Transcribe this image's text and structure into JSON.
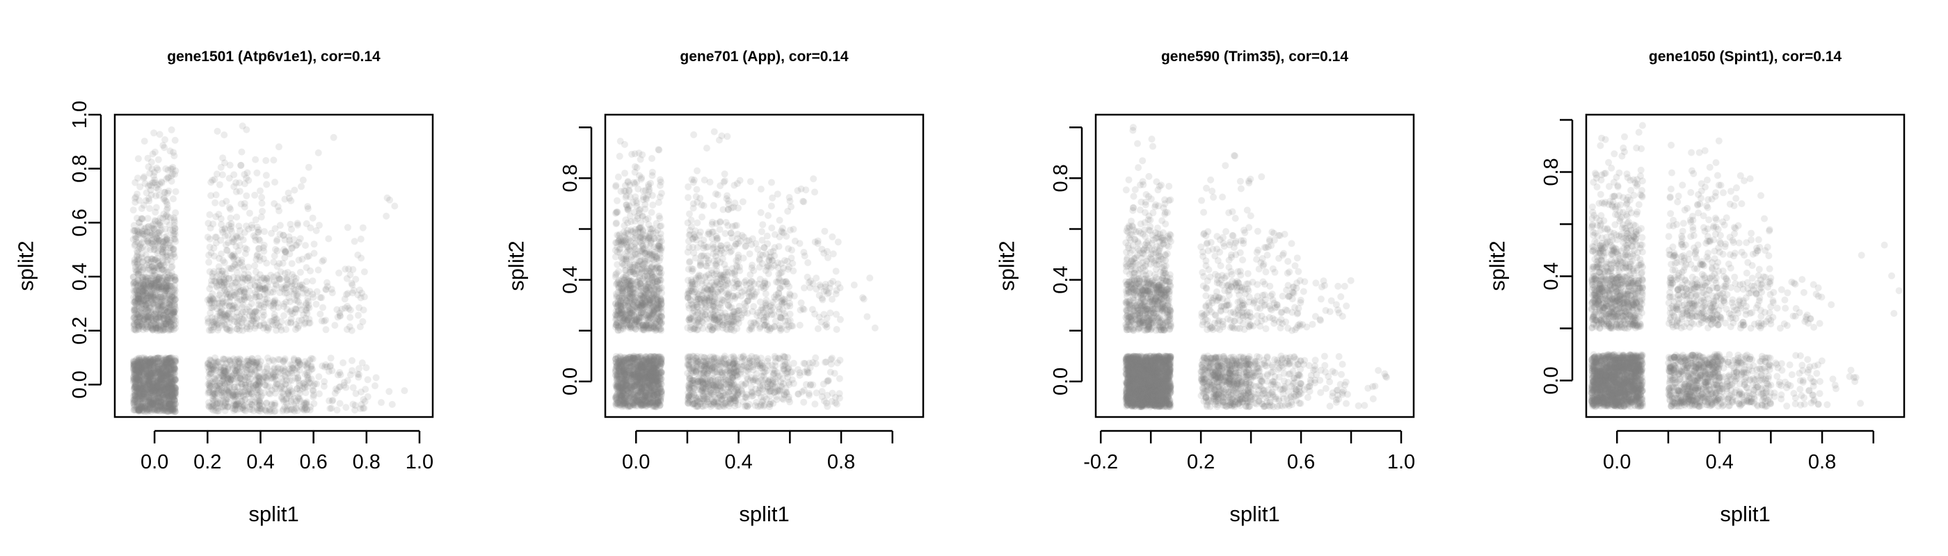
{
  "figure": {
    "background": "#ffffff",
    "point_color": "#808080",
    "point_opacity": 0.15
  },
  "chart_data": [
    {
      "type": "scatter",
      "title": "gene1501 (Atp6v1e1), cor=0.14",
      "xlabel": "split1",
      "ylabel": "split2",
      "xlim": [
        -0.15,
        1.05
      ],
      "ylim": [
        -0.12,
        1.0
      ],
      "xticks": [
        0.0,
        0.2,
        0.4,
        0.6,
        0.8,
        1.0
      ],
      "xtick_labels": [
        "0.0",
        "0.2",
        "0.4",
        "0.6",
        "0.8",
        "1.0"
      ],
      "yticks": [
        0.0,
        0.2,
        0.4,
        0.6,
        0.8,
        1.0
      ],
      "ytick_labels": [
        "0.0",
        "0.2",
        "0.4",
        "0.6",
        "0.8",
        "1.0"
      ],
      "series": [
        {
          "clusters": [
            {
              "x": [
                -0.08,
                0.08
              ],
              "y": [
                -0.1,
                0.1
              ],
              "n": 1200
            },
            {
              "x": [
                0.2,
                0.4
              ],
              "y": [
                -0.1,
                0.1
              ],
              "n": 420
            },
            {
              "x": [
                0.4,
                0.6
              ],
              "y": [
                -0.1,
                0.1
              ],
              "n": 220
            },
            {
              "x": [
                0.6,
                0.8
              ],
              "y": [
                -0.1,
                0.1
              ],
              "n": 60
            },
            {
              "x": [
                0.8,
                0.95
              ],
              "y": [
                -0.1,
                0.05
              ],
              "n": 8
            },
            {
              "x": [
                -0.08,
                0.08
              ],
              "y": [
                0.2,
                0.4
              ],
              "n": 600
            },
            {
              "x": [
                0.2,
                0.4
              ],
              "y": [
                0.2,
                0.4
              ],
              "n": 250
            },
            {
              "x": [
                0.4,
                0.6
              ],
              "y": [
                0.2,
                0.4
              ],
              "n": 160
            },
            {
              "x": [
                0.6,
                0.8
              ],
              "y": [
                0.2,
                0.4
              ],
              "n": 50
            },
            {
              "x": [
                -0.08,
                0.08
              ],
              "y": [
                0.4,
                0.6
              ],
              "n": 230
            },
            {
              "x": [
                0.2,
                0.4
              ],
              "y": [
                0.4,
                0.6
              ],
              "n": 110
            },
            {
              "x": [
                0.4,
                0.6
              ],
              "y": [
                0.4,
                0.6
              ],
              "n": 60
            },
            {
              "x": [
                0.6,
                0.8
              ],
              "y": [
                0.4,
                0.6
              ],
              "n": 20
            },
            {
              "x": [
                -0.08,
                0.08
              ],
              "y": [
                0.6,
                0.8
              ],
              "n": 90
            },
            {
              "x": [
                0.2,
                0.4
              ],
              "y": [
                0.6,
                0.8
              ],
              "n": 40
            },
            {
              "x": [
                0.4,
                0.6
              ],
              "y": [
                0.6,
                0.8
              ],
              "n": 20
            },
            {
              "x": [
                -0.08,
                0.08
              ],
              "y": [
                0.8,
                0.96
              ],
              "n": 20
            },
            {
              "x": [
                0.2,
                0.4
              ],
              "y": [
                0.8,
                0.96
              ],
              "n": 12
            },
            {
              "x": [
                0.4,
                0.7
              ],
              "y": [
                0.8,
                0.96
              ],
              "n": 6
            },
            {
              "x": [
                0.8,
                1.02
              ],
              "y": [
                0.5,
                0.7
              ],
              "n": 4
            }
          ]
        }
      ]
    },
    {
      "type": "scatter",
      "title": "gene701 (App), cor=0.14",
      "xlabel": "split1",
      "ylabel": "split2",
      "xlim": [
        -0.12,
        1.12
      ],
      "ylim": [
        -0.14,
        1.05
      ],
      "xticks": [
        0.0,
        0.2,
        0.4,
        0.6,
        0.8,
        1.0
      ],
      "xtick_labels": [
        "0.0",
        "",
        "0.4",
        "",
        "0.8",
        ""
      ],
      "yticks": [
        0.0,
        0.2,
        0.4,
        0.6,
        0.8,
        1.0
      ],
      "ytick_labels": [
        "0.0",
        "",
        "0.4",
        "",
        "0.8",
        ""
      ],
      "series": [
        {
          "clusters": [
            {
              "x": [
                -0.08,
                0.1
              ],
              "y": [
                -0.1,
                0.1
              ],
              "n": 1100
            },
            {
              "x": [
                0.2,
                0.4
              ],
              "y": [
                -0.1,
                0.1
              ],
              "n": 450
            },
            {
              "x": [
                0.4,
                0.6
              ],
              "y": [
                -0.1,
                0.1
              ],
              "n": 200
            },
            {
              "x": [
                0.6,
                0.8
              ],
              "y": [
                -0.1,
                0.1
              ],
              "n": 60
            },
            {
              "x": [
                -0.08,
                0.1
              ],
              "y": [
                0.2,
                0.4
              ],
              "n": 550
            },
            {
              "x": [
                0.2,
                0.4
              ],
              "y": [
                0.2,
                0.4
              ],
              "n": 270
            },
            {
              "x": [
                0.4,
                0.6
              ],
              "y": [
                0.2,
                0.4
              ],
              "n": 150
            },
            {
              "x": [
                0.6,
                0.8
              ],
              "y": [
                0.2,
                0.4
              ],
              "n": 50
            },
            {
              "x": [
                -0.08,
                0.1
              ],
              "y": [
                0.4,
                0.6
              ],
              "n": 250
            },
            {
              "x": [
                0.2,
                0.4
              ],
              "y": [
                0.4,
                0.6
              ],
              "n": 130
            },
            {
              "x": [
                0.4,
                0.6
              ],
              "y": [
                0.4,
                0.6
              ],
              "n": 70
            },
            {
              "x": [
                0.6,
                0.8
              ],
              "y": [
                0.4,
                0.6
              ],
              "n": 25
            },
            {
              "x": [
                -0.08,
                0.1
              ],
              "y": [
                0.6,
                0.8
              ],
              "n": 90
            },
            {
              "x": [
                0.2,
                0.4
              ],
              "y": [
                0.6,
                0.8
              ],
              "n": 50
            },
            {
              "x": [
                0.4,
                0.7
              ],
              "y": [
                0.6,
                0.8
              ],
              "n": 25
            },
            {
              "x": [
                -0.08,
                0.1
              ],
              "y": [
                0.8,
                0.95
              ],
              "n": 20
            },
            {
              "x": [
                0.2,
                0.45
              ],
              "y": [
                0.8,
                1.0
              ],
              "n": 8
            },
            {
              "x": [
                0.8,
                1.05
              ],
              "y": [
                0.2,
                0.45
              ],
              "n": 6
            }
          ]
        }
      ]
    },
    {
      "type": "scatter",
      "title": "gene590 (Trim35), cor=0.14",
      "xlabel": "split1",
      "ylabel": "split2",
      "xlim": [
        -0.22,
        1.05
      ],
      "ylim": [
        -0.14,
        1.05
      ],
      "xticks": [
        -0.2,
        0.0,
        0.2,
        0.4,
        0.6,
        0.8,
        1.0
      ],
      "xtick_labels": [
        "-0.2",
        "",
        "0.2",
        "",
        "0.6",
        "",
        "1.0"
      ],
      "yticks": [
        0.0,
        0.2,
        0.4,
        0.6,
        0.8,
        1.0
      ],
      "ytick_labels": [
        "0.0",
        "",
        "0.4",
        "",
        "0.8",
        ""
      ],
      "series": [
        {
          "clusters": [
            {
              "x": [
                -0.1,
                0.08
              ],
              "y": [
                -0.1,
                0.1
              ],
              "n": 1800
            },
            {
              "x": [
                0.2,
                0.4
              ],
              "y": [
                -0.1,
                0.1
              ],
              "n": 500
            },
            {
              "x": [
                0.4,
                0.6
              ],
              "y": [
                -0.1,
                0.1
              ],
              "n": 180
            },
            {
              "x": [
                0.6,
                0.8
              ],
              "y": [
                -0.1,
                0.1
              ],
              "n": 50
            },
            {
              "x": [
                0.8,
                0.95
              ],
              "y": [
                -0.1,
                0.05
              ],
              "n": 10
            },
            {
              "x": [
                -0.1,
                0.08
              ],
              "y": [
                0.2,
                0.4
              ],
              "n": 500
            },
            {
              "x": [
                0.2,
                0.4
              ],
              "y": [
                0.2,
                0.4
              ],
              "n": 140
            },
            {
              "x": [
                0.4,
                0.6
              ],
              "y": [
                0.2,
                0.4
              ],
              "n": 80
            },
            {
              "x": [
                0.6,
                0.8
              ],
              "y": [
                0.2,
                0.4
              ],
              "n": 25
            },
            {
              "x": [
                -0.1,
                0.08
              ],
              "y": [
                0.4,
                0.6
              ],
              "n": 160
            },
            {
              "x": [
                0.2,
                0.4
              ],
              "y": [
                0.4,
                0.6
              ],
              "n": 60
            },
            {
              "x": [
                0.4,
                0.6
              ],
              "y": [
                0.4,
                0.6
              ],
              "n": 35
            },
            {
              "x": [
                -0.1,
                0.08
              ],
              "y": [
                0.6,
                0.8
              ],
              "n": 50
            },
            {
              "x": [
                0.2,
                0.4
              ],
              "y": [
                0.6,
                0.8
              ],
              "n": 18
            },
            {
              "x": [
                -0.1,
                0.08
              ],
              "y": [
                0.8,
                1.0
              ],
              "n": 8
            },
            {
              "x": [
                0.25,
                0.5
              ],
              "y": [
                0.8,
                0.9
              ],
              "n": 4
            }
          ]
        }
      ]
    },
    {
      "type": "scatter",
      "title": "gene1050 (Spint1), cor=0.14",
      "xlabel": "split1",
      "ylabel": "split2",
      "xlim": [
        -0.12,
        1.12
      ],
      "ylim": [
        -0.14,
        1.02
      ],
      "xticks": [
        0.0,
        0.2,
        0.4,
        0.6,
        0.8,
        1.0
      ],
      "xtick_labels": [
        "0.0",
        "",
        "0.4",
        "",
        "0.8",
        ""
      ],
      "yticks": [
        0.0,
        0.2,
        0.4,
        0.6,
        0.8,
        1.0
      ],
      "ytick_labels": [
        "0.0",
        "",
        "0.4",
        "",
        "0.8",
        ""
      ],
      "series": [
        {
          "clusters": [
            {
              "x": [
                -0.1,
                0.1
              ],
              "y": [
                -0.1,
                0.1
              ],
              "n": 1500
            },
            {
              "x": [
                0.2,
                0.4
              ],
              "y": [
                -0.1,
                0.1
              ],
              "n": 550
            },
            {
              "x": [
                0.4,
                0.6
              ],
              "y": [
                -0.1,
                0.1
              ],
              "n": 220
            },
            {
              "x": [
                0.6,
                0.8
              ],
              "y": [
                -0.1,
                0.1
              ],
              "n": 60
            },
            {
              "x": [
                0.8,
                0.95
              ],
              "y": [
                -0.1,
                0.05
              ],
              "n": 10
            },
            {
              "x": [
                -0.1,
                0.1
              ],
              "y": [
                0.2,
                0.4
              ],
              "n": 550
            },
            {
              "x": [
                0.2,
                0.4
              ],
              "y": [
                0.2,
                0.4
              ],
              "n": 220
            },
            {
              "x": [
                0.4,
                0.6
              ],
              "y": [
                0.2,
                0.4
              ],
              "n": 110
            },
            {
              "x": [
                0.6,
                0.8
              ],
              "y": [
                0.2,
                0.4
              ],
              "n": 35
            },
            {
              "x": [
                -0.1,
                0.1
              ],
              "y": [
                0.4,
                0.6
              ],
              "n": 220
            },
            {
              "x": [
                0.2,
                0.4
              ],
              "y": [
                0.4,
                0.6
              ],
              "n": 90
            },
            {
              "x": [
                0.4,
                0.6
              ],
              "y": [
                0.4,
                0.6
              ],
              "n": 45
            },
            {
              "x": [
                -0.1,
                0.1
              ],
              "y": [
                0.6,
                0.8
              ],
              "n": 80
            },
            {
              "x": [
                0.2,
                0.4
              ],
              "y": [
                0.6,
                0.8
              ],
              "n": 40
            },
            {
              "x": [
                0.4,
                0.6
              ],
              "y": [
                0.6,
                0.8
              ],
              "n": 15
            },
            {
              "x": [
                -0.1,
                0.1
              ],
              "y": [
                0.8,
                0.98
              ],
              "n": 15
            },
            {
              "x": [
                0.2,
                0.5
              ],
              "y": [
                0.8,
                0.92
              ],
              "n": 8
            },
            {
              "x": [
                0.8,
                1.1
              ],
              "y": [
                0.2,
                0.55
              ],
              "n": 6
            }
          ]
        }
      ]
    }
  ]
}
